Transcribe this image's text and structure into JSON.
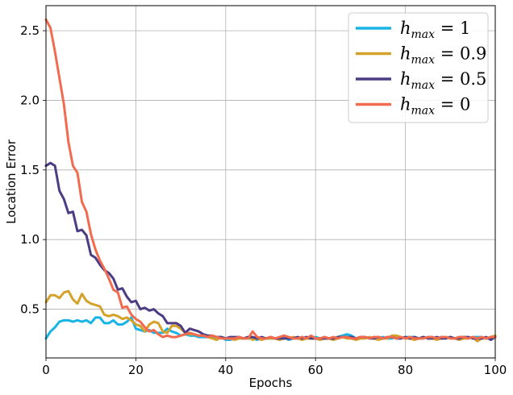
{
  "chart_data": {
    "type": "line",
    "xlabel": "Epochs",
    "ylabel": "Location Error",
    "xlim": [
      0,
      100
    ],
    "ylim": [
      0.15,
      2.68
    ],
    "xticks": [
      0,
      20,
      40,
      60,
      80,
      100
    ],
    "yticks": [
      0.5,
      1.0,
      1.5,
      2.0,
      2.5
    ],
    "xtick_labels": [
      "0",
      "20",
      "40",
      "60",
      "80",
      "100"
    ],
    "ytick_labels": [
      "0.5",
      "1.0",
      "1.5",
      "2.0",
      "2.5"
    ],
    "grid": true,
    "legend_position": "top-right",
    "x": [
      0,
      1,
      2,
      3,
      4,
      5,
      6,
      7,
      8,
      9,
      10,
      11,
      12,
      13,
      14,
      15,
      16,
      17,
      18,
      19,
      20,
      21,
      22,
      23,
      24,
      25,
      26,
      27,
      28,
      29,
      30,
      31,
      32,
      33,
      34,
      35,
      36,
      37,
      38,
      39,
      40,
      41,
      42,
      43,
      44,
      45,
      46,
      47,
      48,
      49,
      50,
      51,
      52,
      53,
      54,
      55,
      56,
      57,
      58,
      59,
      60,
      61,
      62,
      63,
      64,
      65,
      66,
      67,
      68,
      69,
      70,
      71,
      72,
      73,
      74,
      75,
      76,
      77,
      78,
      79,
      80,
      81,
      82,
      83,
      84,
      85,
      86,
      87,
      88,
      89,
      90,
      91,
      92,
      93,
      94,
      95,
      96,
      97,
      98,
      99,
      100
    ],
    "series": [
      {
        "name": "h_max = 1",
        "legend_main": "h",
        "legend_sub": "max",
        "legend_rest": " = 1",
        "color": "#18b4e6",
        "values": [
          0.29,
          0.34,
          0.37,
          0.41,
          0.42,
          0.42,
          0.41,
          0.42,
          0.41,
          0.42,
          0.4,
          0.44,
          0.44,
          0.4,
          0.4,
          0.42,
          0.39,
          0.39,
          0.41,
          0.44,
          0.36,
          0.35,
          0.34,
          0.35,
          0.33,
          0.33,
          0.33,
          0.36,
          0.34,
          0.33,
          0.31,
          0.32,
          0.31,
          0.31,
          0.3,
          0.3,
          0.3,
          0.3,
          0.3,
          0.3,
          0.28,
          0.28,
          0.29,
          0.29,
          0.29,
          0.29,
          0.29,
          0.28,
          0.29,
          0.29,
          0.29,
          0.29,
          0.29,
          0.3,
          0.28,
          0.29,
          0.29,
          0.3,
          0.29,
          0.29,
          0.3,
          0.29,
          0.3,
          0.29,
          0.29,
          0.3,
          0.31,
          0.32,
          0.31,
          0.29,
          0.3,
          0.3,
          0.29,
          0.3,
          0.29,
          0.3,
          0.29,
          0.29,
          0.3,
          0.29,
          0.3,
          0.3,
          0.3,
          0.29,
          0.29,
          0.3,
          0.3,
          0.29,
          0.3,
          0.29,
          0.3,
          0.29,
          0.3,
          0.3,
          0.29,
          0.3,
          0.3,
          0.3,
          0.29,
          0.29,
          0.3
        ]
      },
      {
        "name": "h_max = 0.9",
        "legend_main": "h",
        "legend_sub": "max",
        "legend_rest": " = 0.9",
        "color": "#d4a12a",
        "values": [
          0.55,
          0.6,
          0.6,
          0.58,
          0.62,
          0.63,
          0.57,
          0.54,
          0.61,
          0.56,
          0.54,
          0.53,
          0.52,
          0.46,
          0.45,
          0.46,
          0.45,
          0.43,
          0.44,
          0.42,
          0.39,
          0.38,
          0.34,
          0.39,
          0.41,
          0.4,
          0.34,
          0.33,
          0.38,
          0.38,
          0.36,
          0.33,
          0.32,
          0.32,
          0.31,
          0.31,
          0.3,
          0.29,
          0.28,
          0.3,
          0.29,
          0.29,
          0.28,
          0.29,
          0.29,
          0.3,
          0.28,
          0.29,
          0.28,
          0.29,
          0.29,
          0.29,
          0.28,
          0.29,
          0.29,
          0.3,
          0.29,
          0.28,
          0.29,
          0.29,
          0.29,
          0.28,
          0.29,
          0.29,
          0.28,
          0.29,
          0.3,
          0.29,
          0.29,
          0.28,
          0.29,
          0.29,
          0.3,
          0.29,
          0.28,
          0.29,
          0.29,
          0.31,
          0.31,
          0.3,
          0.29,
          0.29,
          0.28,
          0.29,
          0.3,
          0.29,
          0.29,
          0.28,
          0.29,
          0.3,
          0.29,
          0.29,
          0.28,
          0.29,
          0.29,
          0.3,
          0.27,
          0.29,
          0.29,
          0.3,
          0.31
        ]
      },
      {
        "name": "h_max = 0.5",
        "legend_main": "h",
        "legend_sub": "max",
        "legend_rest": " = 0.5",
        "color": "#4b3c84",
        "values": [
          1.53,
          1.55,
          1.53,
          1.35,
          1.29,
          1.19,
          1.2,
          1.06,
          1.07,
          1.03,
          0.89,
          0.87,
          0.82,
          0.78,
          0.76,
          0.72,
          0.64,
          0.65,
          0.59,
          0.55,
          0.56,
          0.5,
          0.51,
          0.49,
          0.5,
          0.47,
          0.45,
          0.4,
          0.4,
          0.4,
          0.38,
          0.33,
          0.36,
          0.35,
          0.34,
          0.32,
          0.31,
          0.31,
          0.3,
          0.3,
          0.29,
          0.3,
          0.3,
          0.3,
          0.29,
          0.3,
          0.3,
          0.29,
          0.3,
          0.29,
          0.3,
          0.29,
          0.29,
          0.29,
          0.29,
          0.29,
          0.3,
          0.29,
          0.3,
          0.29,
          0.29,
          0.29,
          0.29,
          0.29,
          0.29,
          0.3,
          0.3,
          0.3,
          0.3,
          0.29,
          0.3,
          0.3,
          0.29,
          0.29,
          0.3,
          0.29,
          0.3,
          0.3,
          0.29,
          0.29,
          0.3,
          0.29,
          0.3,
          0.29,
          0.3,
          0.29,
          0.29,
          0.3,
          0.29,
          0.29,
          0.3,
          0.29,
          0.29,
          0.3,
          0.3,
          0.29,
          0.29,
          0.29,
          0.3,
          0.28,
          0.3
        ]
      },
      {
        "name": "h_max = 0",
        "legend_main": "h",
        "legend_sub": "max",
        "legend_rest": " = 0",
        "color": "#f26b4f",
        "values": [
          2.58,
          2.52,
          2.35,
          2.16,
          1.97,
          1.7,
          1.53,
          1.48,
          1.27,
          1.2,
          1.04,
          0.93,
          0.85,
          0.79,
          0.72,
          0.64,
          0.62,
          0.51,
          0.52,
          0.46,
          0.43,
          0.41,
          0.37,
          0.34,
          0.35,
          0.32,
          0.3,
          0.31,
          0.3,
          0.3,
          0.31,
          0.32,
          0.33,
          0.32,
          0.31,
          0.31,
          0.3,
          0.31,
          0.3,
          0.29,
          0.29,
          0.29,
          0.29,
          0.3,
          0.29,
          0.29,
          0.34,
          0.3,
          0.29,
          0.29,
          0.3,
          0.29,
          0.3,
          0.31,
          0.3,
          0.29,
          0.29,
          0.3,
          0.29,
          0.31,
          0.29,
          0.29,
          0.3,
          0.29,
          0.3,
          0.29,
          0.3,
          0.3,
          0.29,
          0.29,
          0.3,
          0.3,
          0.29,
          0.3,
          0.3,
          0.29,
          0.3,
          0.3,
          0.29,
          0.3,
          0.29,
          0.3,
          0.29,
          0.29,
          0.29,
          0.3,
          0.3,
          0.29,
          0.3,
          0.3,
          0.29,
          0.29,
          0.3,
          0.3,
          0.29,
          0.3,
          0.29,
          0.3,
          0.29,
          0.3,
          0.3
        ]
      }
    ]
  }
}
